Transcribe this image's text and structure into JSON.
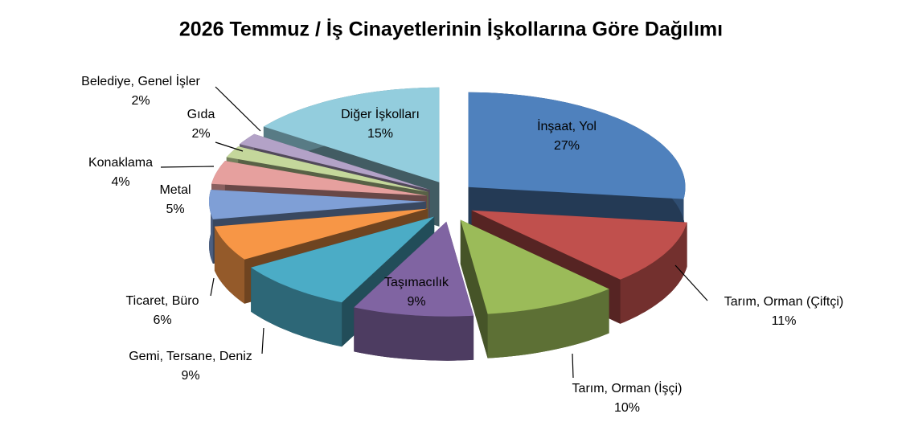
{
  "chart_data": {
    "type": "pie",
    "title": "2026 Temmuz / İş Cinayetlerinin İşkollarına Göre Dağılımı",
    "categories": [
      "İnşaat, Yol",
      "Tarım, Orman (Çiftçi)",
      "Tarım, Orman (İşçi)",
      "Taşımacılık",
      "Gemi, Tersane, Deniz",
      "Ticaret, Büro",
      "Metal",
      "Konaklama",
      "Gıda",
      "Belediye, Genel İşler",
      "Diğer İşkolları"
    ],
    "values": [
      27,
      11,
      10,
      9,
      9,
      6,
      5,
      4,
      2,
      2,
      15
    ],
    "value_labels": [
      "27%",
      "11%",
      "10%",
      "9%",
      "9%",
      "6%",
      "5%",
      "4%",
      "2%",
      "2%",
      "15%"
    ],
    "colors": [
      "#4f81bd",
      "#c0504d",
      "#9bbb59",
      "#8064a2",
      "#4bacc6",
      "#f79646",
      "#7f9fd6",
      "#e6a09e",
      "#c4d79b",
      "#b3a2c7",
      "#93cddd"
    ]
  }
}
